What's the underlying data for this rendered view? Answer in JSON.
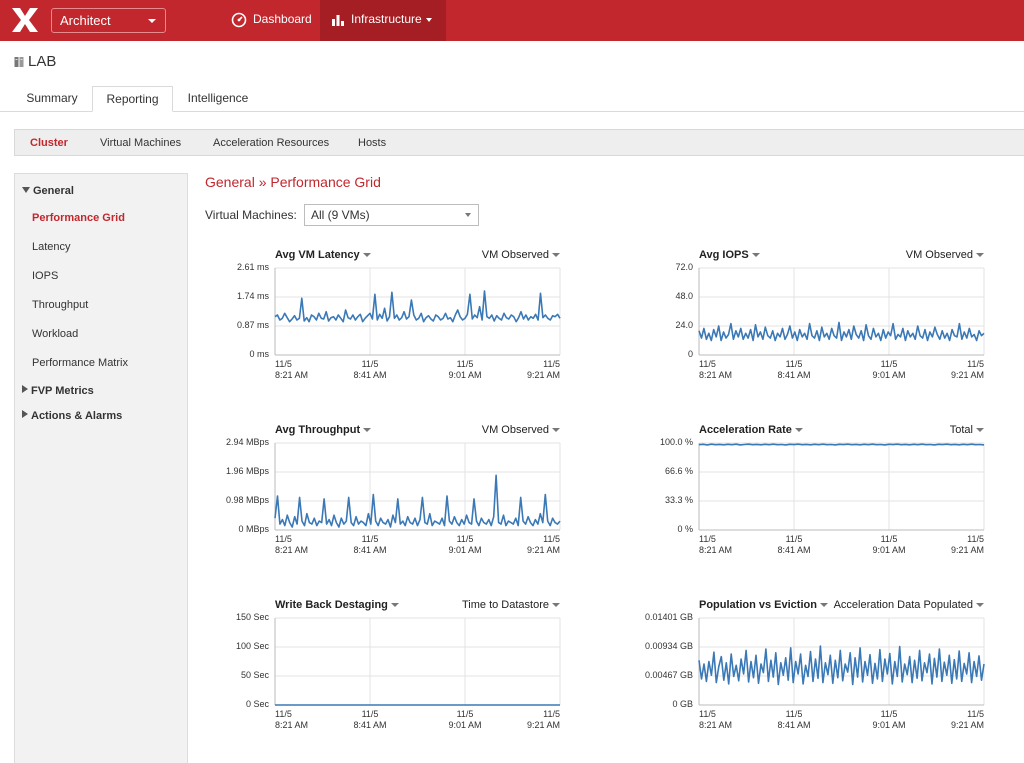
{
  "header": {
    "role": "Architect",
    "nav": [
      {
        "label": "Dashboard",
        "icon": "gauge-icon"
      },
      {
        "label": "Infrastructure",
        "icon": "bar-chart-icon"
      }
    ]
  },
  "page": {
    "title": "LAB",
    "tabs": [
      "Summary",
      "Reporting",
      "Intelligence"
    ],
    "active_tab": "Reporting"
  },
  "subnav": {
    "items": [
      "Cluster",
      "Virtual Machines",
      "Acceleration Resources",
      "Hosts"
    ],
    "active": "Cluster"
  },
  "sidebar": {
    "general": "General",
    "items": [
      "Performance Grid",
      "Latency",
      "IOPS",
      "Throughput",
      "Workload",
      "Performance Matrix"
    ],
    "active": "Performance Grid",
    "groups": [
      "FVP Metrics",
      "Actions & Alarms"
    ]
  },
  "content": {
    "breadcrumb": "General » Performance Grid",
    "vm_label": "Virtual Machines:",
    "vm_value": "All (9 VMs)"
  },
  "colors": {
    "brand": "#c1272d",
    "series": "#3a78b6"
  },
  "chart_data": [
    {
      "type": "line",
      "title": "Avg VM Latency",
      "control": "VM Observed",
      "ylim": [
        0,
        2.61
      ],
      "yticks": [
        "2.61 ms",
        "1.74 ms",
        "0.87 ms",
        "0 ms"
      ],
      "xticks": [
        [
          "11/5",
          "8:21 AM"
        ],
        [
          "11/5",
          "8:41 AM"
        ],
        [
          "11/5",
          "9:01 AM"
        ],
        [
          "11/5",
          "9:21 AM"
        ]
      ],
      "values": [
        1.15,
        1.2,
        1.05,
        1.1,
        1.25,
        1.12,
        1.0,
        1.08,
        1.18,
        1.05,
        1.1,
        1.7,
        1.02,
        1.12,
        1.0,
        1.2,
        1.15,
        1.05,
        1.25,
        1.1,
        1.08,
        1.3,
        1.02,
        1.12,
        1.15,
        1.05,
        1.2,
        1.1,
        1.0,
        1.35,
        1.12,
        1.08,
        1.2,
        1.05,
        1.15,
        1.22,
        1.0,
        1.1,
        1.18,
        1.25,
        1.08,
        1.82,
        1.05,
        1.22,
        1.1,
        1.4,
        1.02,
        1.15,
        1.88,
        1.1,
        1.2,
        1.05,
        1.12,
        1.3,
        1.08,
        1.15,
        1.65,
        1.2,
        1.05,
        1.1,
        1.25,
        1.0,
        1.12,
        1.18,
        1.08,
        1.02,
        1.2,
        1.15,
        1.05,
        1.1,
        1.25,
        1.08,
        1.12,
        1.0,
        1.2,
        1.35,
        1.15,
        1.05,
        1.1,
        1.22,
        1.82,
        1.08,
        1.2,
        1.12,
        1.45,
        1.05,
        1.92,
        1.15,
        1.1,
        1.2,
        1.02,
        1.18,
        1.1,
        1.05,
        1.25,
        1.12,
        1.08,
        1.2,
        1.15,
        1.0,
        1.12,
        1.3,
        1.08,
        1.2,
        1.05,
        1.15,
        1.1,
        1.22,
        1.05,
        1.85,
        1.12,
        1.2,
        1.1,
        1.05,
        1.18,
        1.15,
        1.22,
        1.1
      ]
    },
    {
      "type": "line",
      "title": "Avg IOPS",
      "control": "VM Observed",
      "ylim": [
        0,
        72
      ],
      "yticks": [
        "72.0",
        "48.0",
        "24.0",
        "0"
      ],
      "xticks": [
        [
          "11/5",
          "8:21 AM"
        ],
        [
          "11/5",
          "8:41 AM"
        ],
        [
          "11/5",
          "9:01 AM"
        ],
        [
          "11/5",
          "9:21 AM"
        ]
      ],
      "values": [
        20,
        14,
        22,
        13,
        18,
        12,
        21,
        15,
        24,
        12,
        19,
        14,
        17,
        26,
        13,
        20,
        15,
        22,
        13,
        18,
        14,
        21,
        12,
        25,
        15,
        19,
        13,
        23,
        16,
        14,
        20,
        12,
        18,
        15,
        22,
        13,
        17,
        24,
        14,
        19,
        12,
        21,
        15,
        18,
        13,
        26,
        16,
        14,
        20,
        12,
        23,
        15,
        18,
        13,
        22,
        16,
        14,
        27,
        12,
        19,
        15,
        21,
        13,
        24,
        17,
        14,
        20,
        12,
        25,
        16,
        13,
        22,
        15,
        18,
        12,
        21,
        14,
        19,
        16,
        26,
        13,
        17,
        15,
        22,
        12,
        20,
        15,
        18,
        13,
        24,
        16,
        14,
        21,
        12,
        19,
        15,
        23,
        17,
        13,
        20,
        14,
        18,
        12,
        21,
        16,
        15,
        26,
        13,
        19,
        14,
        22,
        15,
        17,
        12,
        20,
        16,
        18
      ]
    },
    {
      "type": "line",
      "title": "Avg Throughput",
      "control": "VM Observed",
      "ylim": [
        0,
        2.94
      ],
      "yticks": [
        "2.94 MBps",
        "1.96 MBps",
        "0.98 MBps",
        "0 MBps"
      ],
      "xticks": [
        [
          "11/5",
          "8:21 AM"
        ],
        [
          "11/5",
          "8:41 AM"
        ],
        [
          "11/5",
          "9:01 AM"
        ],
        [
          "11/5",
          "9:21 AM"
        ]
      ],
      "values": [
        0.4,
        1.15,
        0.2,
        0.35,
        0.15,
        0.5,
        0.25,
        0.1,
        0.45,
        0.2,
        1.1,
        0.3,
        0.15,
        0.55,
        0.25,
        0.2,
        0.4,
        0.15,
        0.3,
        0.25,
        1.05,
        0.2,
        0.35,
        0.15,
        0.5,
        0.25,
        0.1,
        0.4,
        0.2,
        0.3,
        1.1,
        0.25,
        0.15,
        0.45,
        0.2,
        0.3,
        0.25,
        0.15,
        0.55,
        0.2,
        1.2,
        0.3,
        0.15,
        0.4,
        0.25,
        0.2,
        0.35,
        0.1,
        0.5,
        0.25,
        1.05,
        0.2,
        0.3,
        0.15,
        0.45,
        0.25,
        0.2,
        0.4,
        0.15,
        0.35,
        1.1,
        0.25,
        0.2,
        0.55,
        0.15,
        0.3,
        0.25,
        0.2,
        0.4,
        0.15,
        1.15,
        0.3,
        0.2,
        0.45,
        0.25,
        0.15,
        0.35,
        0.2,
        0.5,
        0.25,
        0.2,
        1.05,
        0.3,
        0.15,
        0.4,
        0.25,
        0.2,
        0.35,
        0.15,
        0.45,
        1.85,
        0.25,
        0.2,
        0.5,
        0.15,
        0.3,
        0.25,
        0.2,
        0.4,
        0.15,
        1.1,
        0.3,
        0.2,
        0.45,
        0.25,
        0.15,
        0.35,
        0.2,
        0.55,
        0.25,
        1.2,
        0.3,
        0.15,
        0.4,
        0.25,
        0.2,
        0.3
      ]
    },
    {
      "type": "line",
      "title": "Acceleration Rate",
      "control": "Total",
      "ylim": [
        0,
        100
      ],
      "yticks": [
        "100.0 %",
        "66.6 %",
        "33.3 %",
        "0 %"
      ],
      "xticks": [
        [
          "11/5",
          "8:21 AM"
        ],
        [
          "11/5",
          "8:41 AM"
        ],
        [
          "11/5",
          "9:01 AM"
        ],
        [
          "11/5",
          "9:21 AM"
        ]
      ],
      "values": [
        98,
        98.5,
        97.8,
        98.6,
        98,
        98.4,
        97.9,
        98.5,
        98.1,
        98.6,
        97.8,
        98.3,
        98.6,
        98,
        98.4,
        97.9,
        98.5,
        98.1,
        98.6,
        98,
        98.3,
        97.8,
        98.5,
        98.2,
        98.6,
        98,
        98.4,
        97.9,
        98.5,
        98.1,
        98.6,
        98,
        98.3,
        97.8,
        98.5,
        98.2,
        98.6,
        98,
        98.4,
        97.9,
        98.5,
        98.1,
        98.6,
        98,
        98.3,
        97.8,
        98.5,
        98.2,
        98.6,
        98,
        98.4,
        97.9,
        98.5,
        98.1,
        98.6,
        98,
        98.3,
        97.8,
        98.5,
        98.2,
        98.6,
        98,
        98.4,
        97.9,
        98.5,
        98.1,
        98.6,
        98,
        98.3,
        97.8
      ]
    },
    {
      "type": "line",
      "title": "Write Back Destaging",
      "control": "Time to Datastore",
      "ylim": [
        0,
        150
      ],
      "yticks": [
        "150 Sec",
        "100 Sec",
        "50 Sec",
        "0 Sec"
      ],
      "xticks": [
        [
          "11/5",
          "8:21 AM"
        ],
        [
          "11/5",
          "8:41 AM"
        ],
        [
          "11/5",
          "9:01 AM"
        ],
        [
          "11/5",
          "9:21 AM"
        ]
      ],
      "values": [
        0,
        0
      ]
    },
    {
      "type": "line",
      "title": "Population vs Eviction",
      "control": "Acceleration Data Populated",
      "ylim": [
        0,
        0.01401
      ],
      "yticks": [
        "0.01401 GB",
        "0.00934 GB",
        "0.00467 GB",
        "0 GB"
      ],
      "xticks": [
        [
          "11/5",
          "8:21 AM"
        ],
        [
          "11/5",
          "8:41 AM"
        ],
        [
          "11/5",
          "9:01 AM"
        ],
        [
          "11/5",
          "9:21 AM"
        ]
      ],
      "values": [
        0.0072,
        0.0042,
        0.0066,
        0.0038,
        0.007,
        0.0048,
        0.0085,
        0.0036,
        0.0062,
        0.0078,
        0.004,
        0.0068,
        0.0034,
        0.0082,
        0.0046,
        0.0064,
        0.0039,
        0.0074,
        0.005,
        0.0088,
        0.0037,
        0.007,
        0.0044,
        0.008,
        0.0035,
        0.0066,
        0.0052,
        0.009,
        0.0038,
        0.0072,
        0.0045,
        0.0084,
        0.0033,
        0.0068,
        0.0048,
        0.0076,
        0.004,
        0.0092,
        0.0036,
        0.007,
        0.005,
        0.0082,
        0.0034,
        0.0064,
        0.0046,
        0.0086,
        0.0038,
        0.0074,
        0.0043,
        0.0095,
        0.0036,
        0.0068,
        0.0049,
        0.008,
        0.0035,
        0.0072,
        0.0044,
        0.0088,
        0.0039,
        0.0066,
        0.0053,
        0.0084,
        0.0033,
        0.0076,
        0.0045,
        0.0092,
        0.0037,
        0.007,
        0.0048,
        0.0081,
        0.0035,
        0.0067,
        0.0042,
        0.0089,
        0.0038,
        0.0074,
        0.005,
        0.0083,
        0.0034,
        0.007,
        0.0046,
        0.0094,
        0.0037,
        0.0066,
        0.0049,
        0.0078,
        0.0036,
        0.0072,
        0.0043,
        0.0088,
        0.0039,
        0.0068,
        0.0052,
        0.0082,
        0.0034,
        0.0075,
        0.0045,
        0.009,
        0.0038,
        0.0069,
        0.0048,
        0.008,
        0.0035,
        0.0073,
        0.0042,
        0.0087,
        0.0038,
        0.0067,
        0.005,
        0.0084,
        0.0036,
        0.007,
        0.0046,
        0.0079,
        0.004,
        0.0066
      ]
    }
  ]
}
